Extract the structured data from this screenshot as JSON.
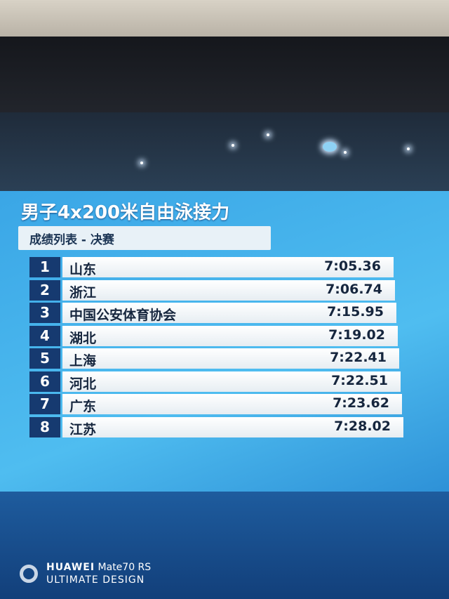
{
  "event_title": "男子4x200米自由泳接力",
  "subtitle": "成绩列表 - 决赛",
  "results": [
    {
      "rank": "1",
      "team": "山东",
      "time": "7:05.36"
    },
    {
      "rank": "2",
      "team": "浙江",
      "time": "7:06.74"
    },
    {
      "rank": "3",
      "team": "中国公安体育协会",
      "time": "7:15.95"
    },
    {
      "rank": "4",
      "team": "湖北",
      "time": "7:19.02"
    },
    {
      "rank": "5",
      "team": "上海",
      "time": "7:22.41"
    },
    {
      "rank": "6",
      "team": "河北",
      "time": "7:22.51"
    },
    {
      "rank": "7",
      "team": "广东",
      "time": "7:23.62"
    },
    {
      "rank": "8",
      "team": "江苏",
      "time": "7:28.02"
    }
  ],
  "watermark": {
    "brand": "HUAWEI",
    "model": "Mate70 RS",
    "tagline": "ULTIMATE DESIGN"
  },
  "colors": {
    "panel": "#4fbdf0",
    "rank_box": "#163a70",
    "row_bar": "#ffffff"
  }
}
